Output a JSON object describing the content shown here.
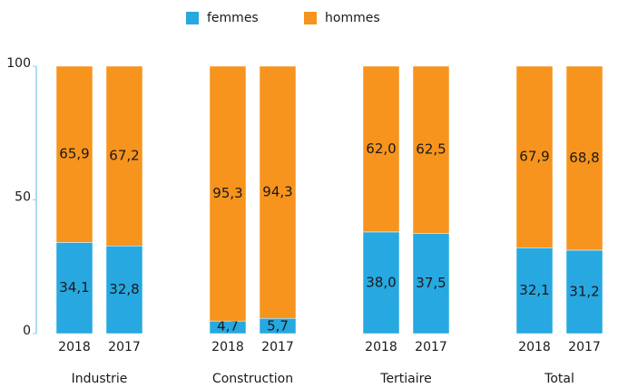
{
  "chart_data": {
    "type": "stacked-bar",
    "categories": [
      "2018",
      "2017",
      "2018",
      "2017",
      "2018",
      "2017",
      "2018",
      "2017"
    ],
    "groups": [
      "Industrie",
      "Construction",
      "Tertiaire",
      "Total"
    ],
    "series": [
      {
        "name": "femmes",
        "color": "#27a8e0",
        "values": [
          34.1,
          32.8,
          4.7,
          5.7,
          38.0,
          37.5,
          32.1,
          31.2
        ],
        "value_labels": [
          "34,1",
          "32,8",
          "4,7",
          "5,7",
          "38,0",
          "37,5",
          "32,1",
          "31,2"
        ]
      },
      {
        "name": "hommes",
        "color": "#f7941d",
        "values": [
          65.9,
          67.2,
          95.3,
          94.3,
          62.0,
          62.5,
          67.9,
          68.8
        ],
        "value_labels": [
          "65,9",
          "67,2",
          "95,3",
          "94,3",
          "62,0",
          "62,5",
          "67,9",
          "68,8"
        ]
      }
    ],
    "ylim": [
      0,
      100
    ],
    "yticks": [
      0,
      50,
      100
    ],
    "legend": "top"
  }
}
